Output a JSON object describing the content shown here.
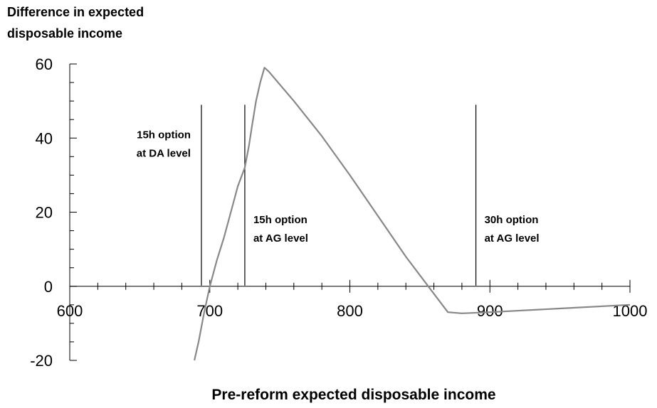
{
  "chart_data": {
    "type": "line",
    "ylabel_lines": [
      "Difference in expected",
      "disposable income"
    ],
    "xlabel": "Pre-reform expected disposable income",
    "xlim": [
      600,
      1000
    ],
    "ylim": [
      -20,
      60
    ],
    "x_ticks": [
      "600",
      "700",
      "800",
      "900",
      "1000"
    ],
    "y_ticks": [
      "-20",
      "0",
      "20",
      "40",
      "60"
    ],
    "series": [
      {
        "color": "#888888",
        "points": [
          [
            689,
            -20
          ],
          [
            692,
            -15
          ],
          [
            696,
            -7
          ],
          [
            700,
            0
          ],
          [
            705,
            7
          ],
          [
            710,
            13
          ],
          [
            715,
            20
          ],
          [
            720,
            27
          ],
          [
            725,
            32
          ],
          [
            728,
            38
          ],
          [
            730,
            43
          ],
          [
            733,
            50
          ],
          [
            736,
            55
          ],
          [
            739,
            59
          ],
          [
            742,
            58
          ],
          [
            760,
            50
          ],
          [
            780,
            40.5
          ],
          [
            800,
            30
          ],
          [
            820,
            19
          ],
          [
            840,
            8
          ],
          [
            860,
            -2
          ],
          [
            870,
            -7
          ],
          [
            880,
            -7.3
          ],
          [
            900,
            -7
          ],
          [
            950,
            -6
          ],
          [
            1000,
            -5
          ]
        ]
      }
    ],
    "vlines": [
      {
        "x": 694,
        "y_top": 49,
        "label_lines": [
          "15h option",
          "at DA level"
        ],
        "label_side": "left",
        "label_y": 40
      },
      {
        "x": 725,
        "y_top": 49,
        "label_lines": [
          "15h option",
          "at AG level"
        ],
        "label_side": "right",
        "label_y": 17
      },
      {
        "x": 890,
        "y_top": 49,
        "label_lines": [
          "30h option",
          "at AG level"
        ],
        "label_side": "right",
        "label_y": 17
      }
    ]
  }
}
